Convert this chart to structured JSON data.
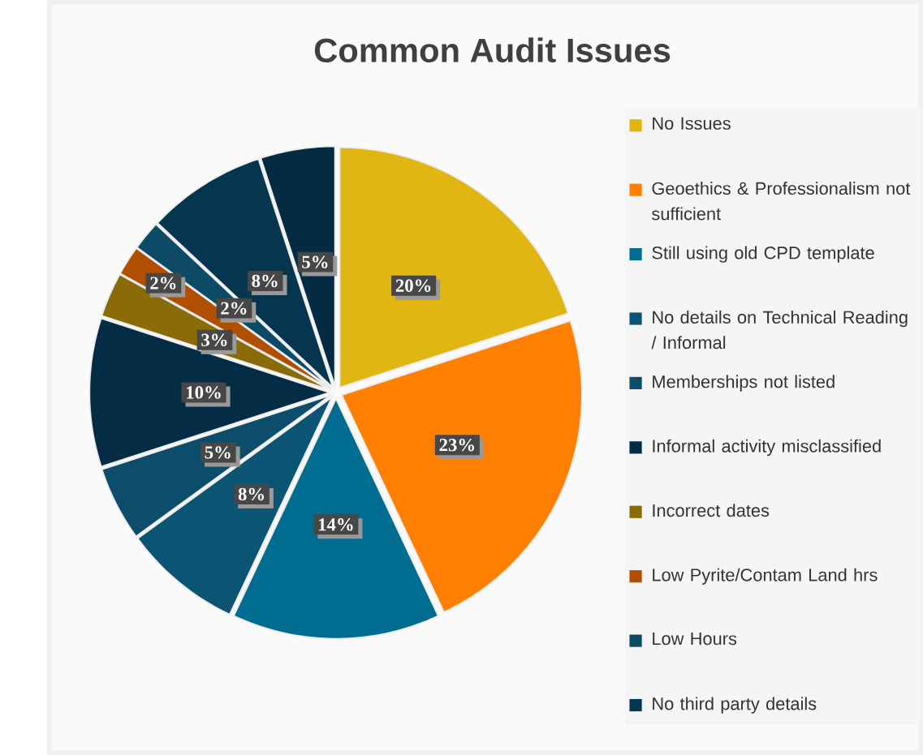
{
  "chart_data": {
    "type": "pie",
    "title": "Common Audit Issues",
    "categories": [
      "No Issues",
      "Geoethics & Professionalism not sufficient",
      "Still using old CPD template",
      "No details on Technical Reading / Informal",
      "Memberships not listed",
      "Informal activity misclassified",
      "Incorrect dates",
      "Low Pyrite/Contam Land hrs",
      "Low Hours",
      "No third party details",
      null
    ],
    "values": [
      20,
      23,
      14,
      8,
      5,
      10,
      3,
      2,
      2,
      8,
      5
    ],
    "value_labels": [
      "20%",
      "23%",
      "14%",
      "8%",
      "5%",
      "10%",
      "3%",
      "2%",
      "2%",
      "8%",
      "5%"
    ],
    "colors": [
      "#e1b512",
      "#ff7f00",
      "#006d90",
      "#0b5474",
      "#0b4d6a",
      "#052c45",
      "#8a6b08",
      "#b04f00",
      "#0c4a66",
      "#063550",
      "#042b42"
    ],
    "legend": "right"
  }
}
